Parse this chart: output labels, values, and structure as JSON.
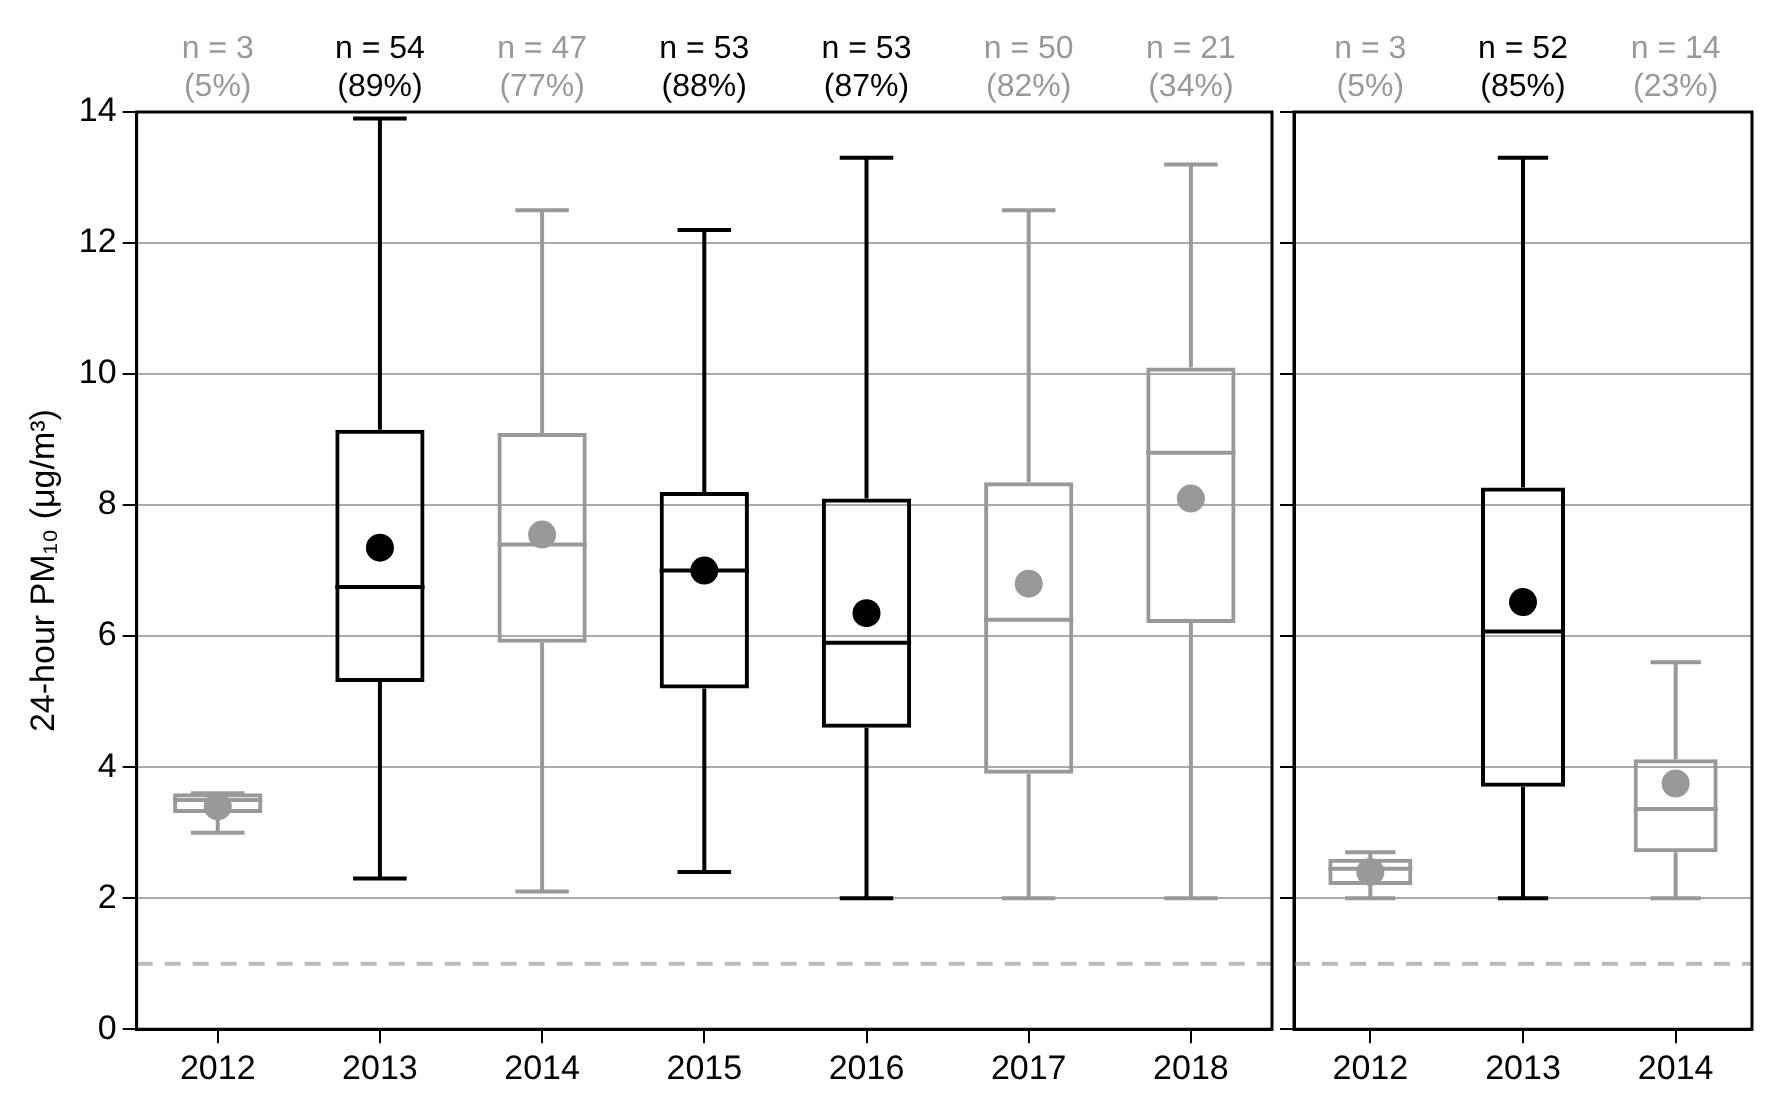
{
  "chart_data": [
    {
      "type": "box",
      "ylabel": "24-hour PM₁₀ (μg/m³)",
      "categories": [
        "2012",
        "2013",
        "2014",
        "2015",
        "2016",
        "2017",
        "2018"
      ],
      "colors": [
        "#999999",
        "#000000",
        "#999999",
        "#000000",
        "#000000",
        "#999999",
        "#999999"
      ],
      "boxes": [
        {
          "low": 3.0,
          "q1": 3.3,
          "median": 3.5,
          "q3": 3.6,
          "high": 3.6,
          "mean": 3.4
        },
        {
          "low": 2.3,
          "q1": 5.3,
          "median": 6.75,
          "q3": 9.15,
          "high": 13.9,
          "mean": 7.35
        },
        {
          "low": 2.1,
          "q1": 5.9,
          "median": 7.4,
          "q3": 9.1,
          "high": 12.5,
          "mean": 7.55
        },
        {
          "low": 2.4,
          "q1": 5.2,
          "median": 7.0,
          "q3": 8.2,
          "high": 12.2,
          "mean": 7.0
        },
        {
          "low": 2.0,
          "q1": 4.6,
          "median": 5.9,
          "q3": 8.1,
          "high": 13.3,
          "mean": 6.35
        },
        {
          "low": 2.0,
          "q1": 3.9,
          "median": 6.25,
          "q3": 8.35,
          "high": 12.5,
          "mean": 6.8
        },
        {
          "low": 2.0,
          "q1": 6.2,
          "median": 8.8,
          "q3": 10.1,
          "high": 13.2,
          "mean": 8.1
        }
      ],
      "annotations": [
        "n = 3\n(5%)",
        "n = 54\n(89%)",
        "n = 47\n(77%)",
        "n = 53\n(88%)",
        "n = 53\n(87%)",
        "n = 50\n(82%)",
        "n = 21\n(34%)"
      ],
      "ylim": [
        0,
        14
      ],
      "yticks": [
        0,
        2,
        4,
        6,
        8,
        10,
        12,
        14
      ],
      "grid": "y",
      "ref_lines": [
        {
          "axis": "y",
          "value": 1,
          "color": "#bbbbbb",
          "line_style": "dashed"
        }
      ]
    },
    {
      "type": "box",
      "categories": [
        "2012",
        "2013",
        "2014"
      ],
      "colors": [
        "#999999",
        "#000000",
        "#999999"
      ],
      "boxes": [
        {
          "low": 2.0,
          "q1": 2.2,
          "median": 2.45,
          "q3": 2.6,
          "high": 2.7,
          "mean": 2.4
        },
        {
          "low": 2.0,
          "q1": 3.7,
          "median": 6.07,
          "q3": 8.27,
          "high": 13.3,
          "mean": 6.52
        },
        {
          "low": 2.0,
          "q1": 2.7,
          "median": 3.36,
          "q3": 4.12,
          "high": 5.6,
          "mean": 3.75
        }
      ],
      "annotations": [
        "n = 3\n(5%)",
        "n = 52\n(85%)",
        "n = 14\n(23%)"
      ],
      "ylim": [
        0,
        14
      ],
      "yticks": [
        0,
        2,
        4,
        6,
        8,
        10,
        12,
        14
      ],
      "grid": "y",
      "tick_labels": "x",
      "ref_lines": [
        {
          "axis": "y",
          "value": 1,
          "color": "#bbbbbb",
          "line_style": "dashed"
        }
      ]
    }
  ]
}
